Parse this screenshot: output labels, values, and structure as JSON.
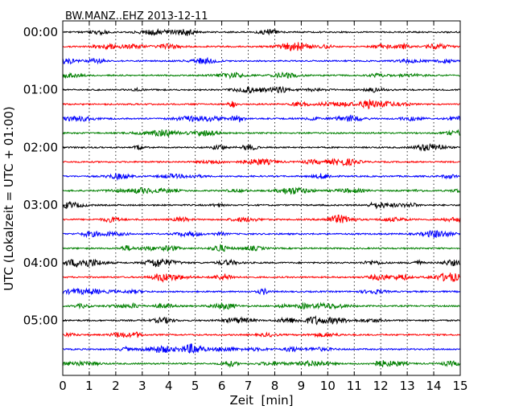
{
  "chart_data": {
    "type": "line",
    "title": "BW.MANZ..EHZ 2013-12-11",
    "xlabel": "Zeit  [min]",
    "ylabel": "UTC (Lokalzeit = UTC + 01:00)",
    "xlim": [
      0,
      15
    ],
    "x_ticks": [
      "0",
      "1",
      "2",
      "3",
      "4",
      "5",
      "6",
      "7",
      "8",
      "9",
      "10",
      "11",
      "12",
      "13",
      "14",
      "15"
    ],
    "y_ticks": [
      "00:00",
      "01:00",
      "02:00",
      "03:00",
      "04:00",
      "05:00"
    ],
    "trace_interval_min": 15,
    "trace_count": 24,
    "trace_colors": [
      "#000000",
      "#ff0000",
      "#0000ff",
      "#008000"
    ],
    "grid": "vertical dotted at each minute"
  }
}
